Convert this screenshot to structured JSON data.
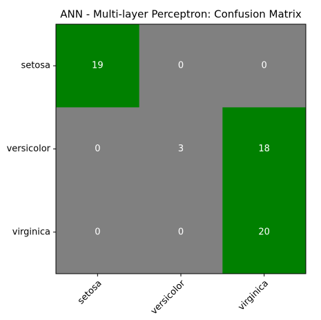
{
  "chart_data": {
    "type": "heatmap",
    "title": "ANN - Multi-layer Perceptron: Confusion Matrix",
    "x_categories": [
      "setosa",
      "versicolor",
      "virginica"
    ],
    "y_categories": [
      "setosa",
      "versicolor",
      "virginica"
    ],
    "values": [
      [
        19,
        0,
        0
      ],
      [
        0,
        3,
        18
      ],
      [
        0,
        0,
        20
      ]
    ],
    "colors": [
      [
        "#008000",
        "#808080",
        "#808080"
      ],
      [
        "#808080",
        "#808080",
        "#008000"
      ],
      [
        "#808080",
        "#808080",
        "#008000"
      ]
    ]
  }
}
